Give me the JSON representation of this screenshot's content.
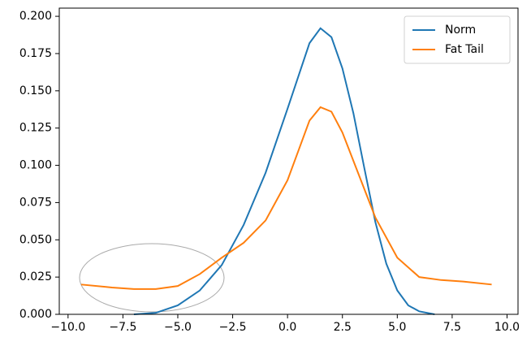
{
  "chart_data": {
    "type": "line",
    "xlim": [
      -10.4,
      10.5
    ],
    "ylim": [
      0,
      0.2055
    ],
    "xticks": [
      {
        "value": -10,
        "label": "−10.0"
      },
      {
        "value": -7.5,
        "label": "−7.5"
      },
      {
        "value": -5,
        "label": "−5.0"
      },
      {
        "value": -2.5,
        "label": "−2.5"
      },
      {
        "value": 0,
        "label": "0.0"
      },
      2.5,
      {
        "value": 5,
        "label": "5.0"
      },
      7.5,
      {
        "value": 10,
        "label": "10.0"
      }
    ],
    "yticks": [
      {
        "value": 0,
        "label": "0.000"
      },
      {
        "value": 0.025,
        "label": "0.025"
      },
      {
        "value": 0.05,
        "label": "0.050"
      },
      {
        "value": 0.075,
        "label": "0.075"
      },
      {
        "value": 0.1,
        "label": "0.100"
      },
      {
        "value": 0.125,
        "label": "0.125"
      },
      {
        "value": 0.15,
        "label": "0.150"
      },
      {
        "value": 0.175,
        "label": "0.175"
      },
      {
        "value": 0.2,
        "label": "0.200"
      }
    ],
    "grid": false,
    "legend": "upper right",
    "series": [
      {
        "name": "Norm",
        "color": "#1f77b4",
        "x": [
          -7.0,
          -6.5,
          -6.0,
          -5.0,
          -4.0,
          -3.0,
          -2.0,
          -1.0,
          0.0,
          0.5,
          1.0,
          1.5,
          2.0,
          2.5,
          3.0,
          3.5,
          4.0,
          4.5,
          5.0,
          5.5,
          6.0,
          6.7
        ],
        "values": [
          0.0,
          0.0005,
          0.001,
          0.006,
          0.016,
          0.033,
          0.06,
          0.095,
          0.138,
          0.16,
          0.182,
          0.192,
          0.186,
          0.165,
          0.135,
          0.098,
          0.062,
          0.034,
          0.016,
          0.006,
          0.002,
          0.0
        ]
      },
      {
        "name": "Fat Tail",
        "color": "#ff7f0e",
        "x": [
          -9.4,
          -8.0,
          -7.0,
          -6.0,
          -5.0,
          -4.0,
          -3.0,
          -2.0,
          -1.0,
          0.0,
          0.5,
          1.0,
          1.5,
          2.0,
          2.5,
          3.0,
          3.5,
          4.0,
          5.0,
          6.0,
          7.0,
          8.0,
          9.3
        ],
        "values": [
          0.02,
          0.018,
          0.017,
          0.017,
          0.019,
          0.027,
          0.038,
          0.048,
          0.063,
          0.09,
          0.11,
          0.13,
          0.139,
          0.136,
          0.122,
          0.103,
          0.084,
          0.065,
          0.038,
          0.025,
          0.023,
          0.022,
          0.02
        ]
      }
    ]
  }
}
